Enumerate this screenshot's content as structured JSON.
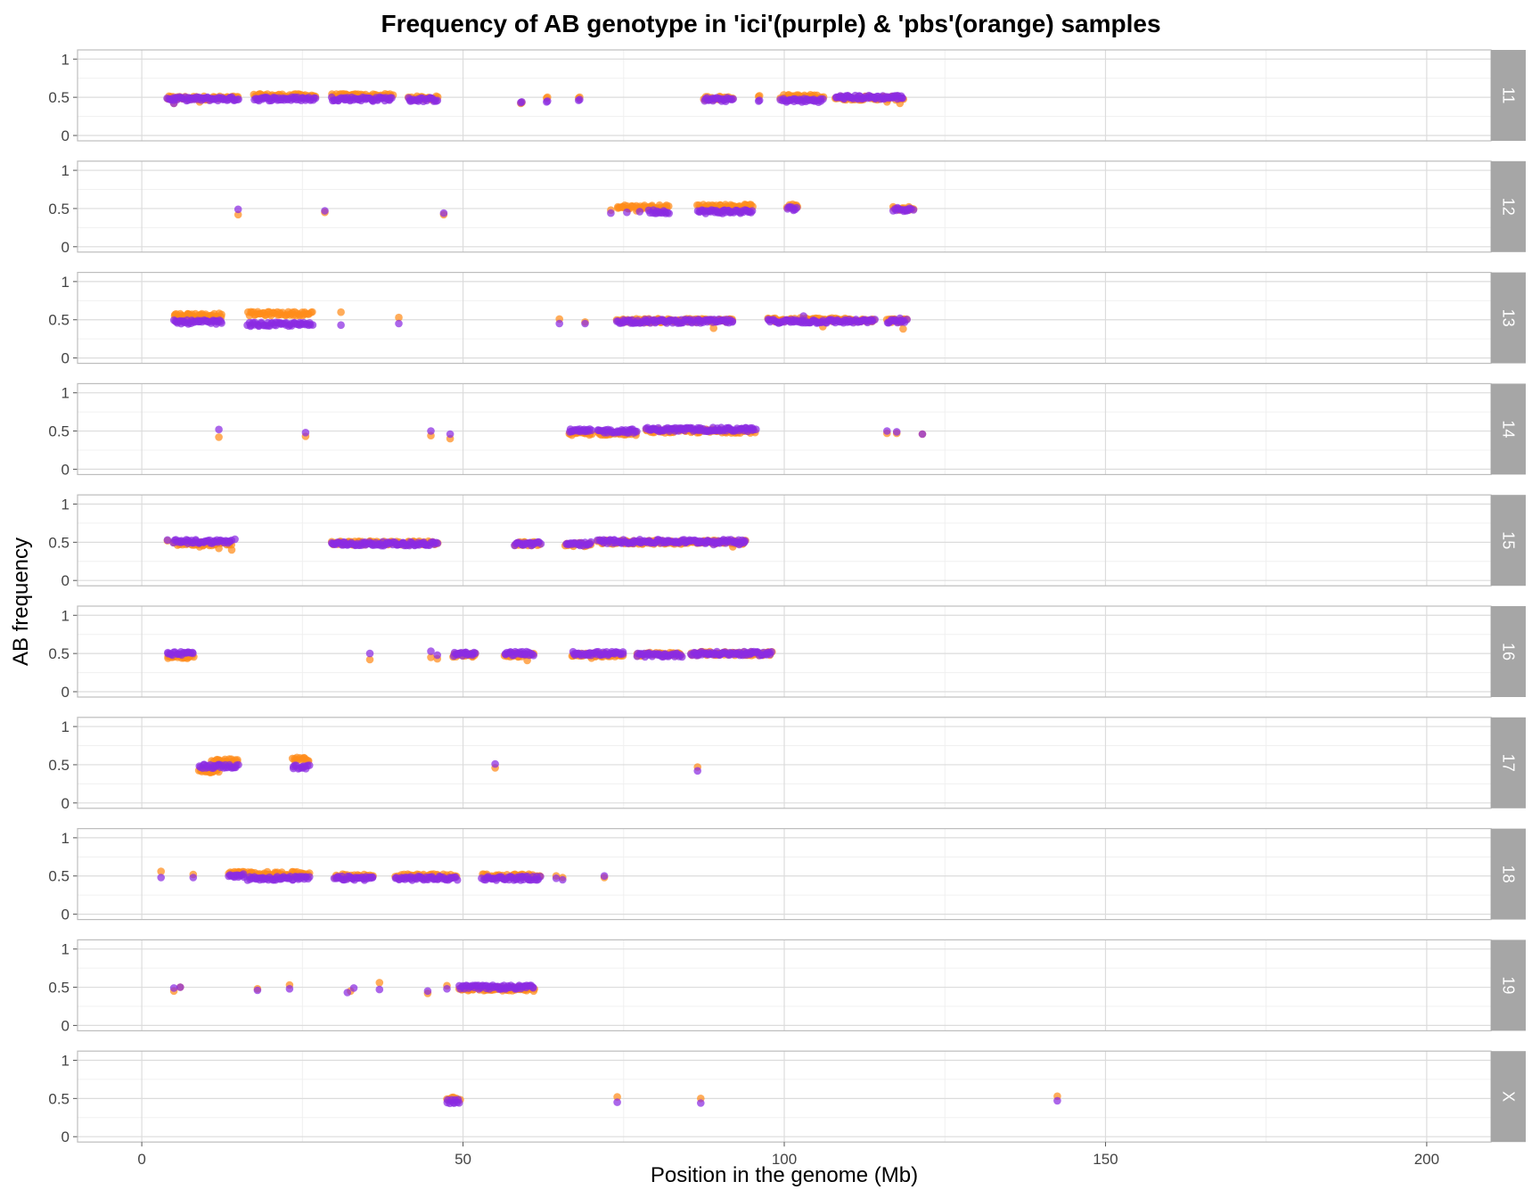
{
  "chart_data": {
    "type": "scatter",
    "title": "Frequency of AB genotype in 'ici'(purple) & 'pbs'(orange) samples",
    "xlabel": "Position in the genome (Mb)",
    "ylabel": "AB frequency",
    "xlim": [
      -10,
      210
    ],
    "ylim": [
      0,
      1.05
    ],
    "x_ticks": [
      0,
      50,
      100,
      150,
      200
    ],
    "y_ticks": [
      0,
      0.5,
      1
    ],
    "y_tick_labels": [
      "0",
      "0.5",
      "1"
    ],
    "grid": true,
    "colors": {
      "ici": "#8a2be2",
      "pbs": "#ff8c1a",
      "strip_bg": "#a6a6a6",
      "grid_major": "#dcdcdc",
      "grid_minor": "#f0f0f0",
      "panel_border": "#bdbdbd"
    },
    "series": [
      {
        "key": "pbs",
        "color": "#ff8c1a"
      },
      {
        "key": "ici",
        "color": "#8a2be2"
      }
    ],
    "facets": [
      {
        "label": "11",
        "pbs": {
          "clusters": [
            [
              4,
              15,
              0.49
            ],
            [
              17.5,
              27,
              0.52
            ],
            [
              29.5,
              39,
              0.52
            ],
            [
              41.5,
              46,
              0.49
            ],
            [
              59,
              0.42
            ],
            [
              63,
              0.49
            ],
            [
              68,
              0.49
            ],
            [
              87.5,
              92,
              0.49
            ],
            [
              96,
              0.51
            ],
            [
              99.5,
              106,
              0.51
            ],
            [
              108,
              118.5,
              0.49
            ]
          ],
          "points": [
            [
              5,
              0.42
            ],
            [
              9,
              0.44
            ],
            [
              118,
              0.42
            ],
            [
              116,
              0.44
            ]
          ]
        },
        "ici": {
          "clusters": [
            [
              4,
              15,
              0.48
            ],
            [
              17.5,
              27,
              0.48
            ],
            [
              29.5,
              39,
              0.48
            ],
            [
              41.5,
              46,
              0.47
            ],
            [
              59,
              0.43
            ],
            [
              63,
              0.44
            ],
            [
              68,
              0.46
            ],
            [
              87.5,
              92,
              0.47
            ],
            [
              96,
              0.45
            ],
            [
              99.5,
              106,
              0.46
            ],
            [
              108,
              118.5,
              0.5
            ]
          ],
          "points": [
            [
              5,
              0.42
            ],
            [
              117.5,
              0.52
            ],
            [
              36,
              0.45
            ]
          ]
        }
      },
      {
        "label": "12",
        "pbs": {
          "clusters": [
            [
              74,
              82,
              0.52
            ],
            [
              86.5,
              95,
              0.53
            ],
            [
              100.5,
              102,
              0.53
            ],
            [
              117,
              120,
              0.5
            ]
          ],
          "points": [
            [
              15,
              0.42
            ],
            [
              28.5,
              0.45
            ],
            [
              47,
              0.42
            ],
            [
              73,
              0.48
            ],
            [
              77,
              0.47
            ],
            [
              79.5,
              0.51
            ]
          ]
        },
        "ici": {
          "clusters": [
            [
              79,
              82,
              0.46
            ],
            [
              86.5,
              95,
              0.46
            ],
            [
              100.5,
              102,
              0.5
            ],
            [
              117,
              120,
              0.49
            ]
          ],
          "points": [
            [
              15,
              0.49
            ],
            [
              28.5,
              0.47
            ],
            [
              47,
              0.44
            ],
            [
              73,
              0.44
            ],
            [
              75.5,
              0.45
            ],
            [
              77.5,
              0.46
            ]
          ]
        }
      },
      {
        "label": "13",
        "pbs": {
          "clusters": [
            [
              5,
              12.5,
              0.56
            ],
            [
              16.5,
              26.5,
              0.58
            ],
            [
              74,
              92,
              0.49
            ],
            [
              97.5,
              114,
              0.5
            ],
            [
              116,
              119,
              0.49
            ]
          ],
          "points": [
            [
              31,
              0.6
            ],
            [
              40,
              0.53
            ],
            [
              65,
              0.51
            ],
            [
              69,
              0.47
            ],
            [
              89,
              0.39
            ],
            [
              106,
              0.41
            ],
            [
              118.5,
              0.38
            ]
          ]
        },
        "ici": {
          "clusters": [
            [
              5,
              12.5,
              0.47
            ],
            [
              16.5,
              26.5,
              0.44
            ],
            [
              74,
              92,
              0.48
            ],
            [
              97.5,
              114,
              0.48
            ],
            [
              116,
              119,
              0.48
            ]
          ],
          "points": [
            [
              31,
              0.43
            ],
            [
              40,
              0.45
            ],
            [
              65,
              0.45
            ],
            [
              69,
              0.45
            ],
            [
              103,
              0.55
            ],
            [
              118,
              0.52
            ]
          ]
        }
      },
      {
        "label": "14",
        "pbs": {
          "clusters": [
            [
              66.5,
              70,
              0.47
            ],
            [
              71,
              77,
              0.47
            ],
            [
              78.5,
              95.5,
              0.5
            ]
          ],
          "points": [
            [
              12,
              0.42
            ],
            [
              25.5,
              0.43
            ],
            [
              45,
              0.44
            ],
            [
              48,
              0.4
            ],
            [
              116,
              0.47
            ],
            [
              117.5,
              0.47
            ],
            [
              121.5,
              0.46
            ]
          ]
        },
        "ici": {
          "clusters": [
            [
              66.5,
              70,
              0.5
            ],
            [
              71,
              77,
              0.5
            ],
            [
              78.5,
              95.5,
              0.52
            ]
          ],
          "points": [
            [
              12,
              0.52
            ],
            [
              25.5,
              0.48
            ],
            [
              45,
              0.5
            ],
            [
              48,
              0.46
            ],
            [
              116,
              0.5
            ],
            [
              117.5,
              0.49
            ],
            [
              121.5,
              0.46
            ]
          ]
        }
      },
      {
        "label": "15",
        "pbs": {
          "clusters": [
            [
              5,
              14,
              0.48
            ],
            [
              29.5,
              46,
              0.49
            ],
            [
              58,
              62,
              0.48
            ],
            [
              66,
              70,
              0.47
            ],
            [
              71,
              94,
              0.5
            ]
          ],
          "points": [
            [
              4,
              0.52
            ],
            [
              12,
              0.42
            ],
            [
              14,
              0.4
            ],
            [
              9,
              0.44
            ],
            [
              92,
              0.44
            ]
          ]
        },
        "ici": {
          "clusters": [
            [
              5,
              14,
              0.51
            ],
            [
              29.5,
              46,
              0.48
            ],
            [
              58,
              62,
              0.48
            ],
            [
              66,
              70,
              0.48
            ],
            [
              71,
              94,
              0.51
            ]
          ],
          "points": [
            [
              4,
              0.53
            ],
            [
              14.5,
              0.54
            ],
            [
              93,
              0.47
            ],
            [
              89,
              0.47
            ]
          ]
        }
      },
      {
        "label": "16",
        "pbs": {
          "clusters": [
            [
              4,
              8,
              0.46
            ],
            [
              48.5,
              52,
              0.48
            ],
            [
              56.5,
              61,
              0.48
            ],
            [
              67,
              75,
              0.48
            ],
            [
              77,
              84,
              0.49
            ],
            [
              85.5,
              98,
              0.5
            ]
          ],
          "points": [
            [
              35.5,
              0.42
            ],
            [
              45,
              0.45
            ],
            [
              46,
              0.43
            ],
            [
              60,
              0.41
            ],
            [
              70,
              0.44
            ]
          ]
        },
        "ici": {
          "clusters": [
            [
              4,
              8,
              0.5
            ],
            [
              48.5,
              52,
              0.49
            ],
            [
              56.5,
              61,
              0.5
            ],
            [
              67,
              75,
              0.5
            ],
            [
              77,
              84,
              0.48
            ],
            [
              85.5,
              98,
              0.5
            ]
          ],
          "points": [
            [
              35.5,
              0.5
            ],
            [
              45,
              0.53
            ],
            [
              46,
              0.48
            ]
          ]
        }
      },
      {
        "label": "17",
        "pbs": {
          "clusters": [
            [
              9,
              12,
              0.42
            ],
            [
              11,
              15,
              0.55
            ],
            [
              23.5,
              26,
              0.57
            ]
          ],
          "points": [
            [
              55,
              0.46
            ],
            [
              86.5,
              0.47
            ]
          ]
        },
        "ici": {
          "clusters": [
            [
              9,
              15,
              0.48
            ],
            [
              23.5,
              26,
              0.47
            ]
          ],
          "points": [
            [
              55,
              0.51
            ],
            [
              86.5,
              0.42
            ]
          ]
        }
      },
      {
        "label": "18",
        "pbs": {
          "clusters": [
            [
              13.5,
              16,
              0.54
            ],
            [
              16.5,
              26,
              0.53
            ],
            [
              30,
              36,
              0.5
            ],
            [
              39.5,
              49,
              0.5
            ],
            [
              53,
              62,
              0.5
            ]
          ],
          "points": [
            [
              3,
              0.56
            ],
            [
              8,
              0.52
            ],
            [
              64.5,
              0.5
            ],
            [
              65.5,
              0.48
            ],
            [
              72,
              0.48
            ]
          ]
        },
        "ici": {
          "clusters": [
            [
              13.5,
              16,
              0.5
            ],
            [
              16.5,
              26,
              0.47
            ],
            [
              30,
              36,
              0.47
            ],
            [
              39.5,
              49,
              0.47
            ],
            [
              53,
              62,
              0.47
            ]
          ],
          "points": [
            [
              3,
              0.48
            ],
            [
              8,
              0.48
            ],
            [
              64.5,
              0.47
            ],
            [
              65.5,
              0.45
            ],
            [
              72,
              0.5
            ]
          ]
        }
      },
      {
        "label": "19",
        "pbs": {
          "clusters": [
            [
              49.5,
              61,
              0.48
            ]
          ],
          "points": [
            [
              5,
              0.45
            ],
            [
              6,
              0.5
            ],
            [
              18,
              0.48
            ],
            [
              23,
              0.53
            ],
            [
              32.5,
              0.45
            ],
            [
              37,
              0.56
            ],
            [
              44.5,
              0.42
            ],
            [
              47.5,
              0.52
            ],
            [
              61,
              0.45
            ]
          ]
        },
        "ici": {
          "clusters": [
            [
              49.5,
              61,
              0.5
            ]
          ],
          "points": [
            [
              5,
              0.49
            ],
            [
              6,
              0.5
            ],
            [
              18,
              0.46
            ],
            [
              23,
              0.48
            ],
            [
              32,
              0.43
            ],
            [
              33,
              0.49
            ],
            [
              37,
              0.47
            ],
            [
              44.5,
              0.45
            ],
            [
              47.5,
              0.48
            ]
          ]
        }
      },
      {
        "label": "X",
        "pbs": {
          "clusters": [
            [
              47.5,
              49.5,
              0.49
            ]
          ],
          "points": [
            [
              74,
              0.52
            ],
            [
              87,
              0.5
            ],
            [
              142.5,
              0.53
            ]
          ]
        },
        "ici": {
          "clusters": [
            [
              47.5,
              49.5,
              0.46
            ]
          ],
          "points": [
            [
              74,
              0.45
            ],
            [
              87,
              0.44
            ],
            [
              142.5,
              0.47
            ]
          ]
        }
      }
    ]
  }
}
